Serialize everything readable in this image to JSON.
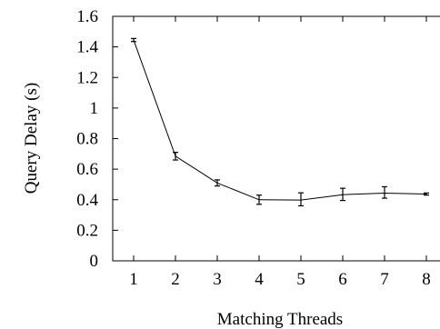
{
  "chart_data": {
    "type": "line",
    "title": "",
    "xlabel": "Matching Threads",
    "ylabel": "Query Delay (s)",
    "xlim": [
      0.5,
      8.5
    ],
    "ylim": [
      0,
      1.6
    ],
    "x_ticks": [
      {
        "value": 1,
        "label": "1"
      },
      {
        "value": 2,
        "label": "2"
      },
      {
        "value": 3,
        "label": "3"
      },
      {
        "value": 4,
        "label": "4"
      },
      {
        "value": 5,
        "label": "5"
      },
      {
        "value": 6,
        "label": "6"
      },
      {
        "value": 7,
        "label": "7"
      },
      {
        "value": 8,
        "label": "8"
      }
    ],
    "y_ticks": [
      {
        "value": 0,
        "label": "0"
      },
      {
        "value": 0.2,
        "label": "0.2"
      },
      {
        "value": 0.4,
        "label": "0.4"
      },
      {
        "value": 0.6,
        "label": "0.6"
      },
      {
        "value": 0.8,
        "label": "0.8"
      },
      {
        "value": 1,
        "label": "1"
      },
      {
        "value": 1.2,
        "label": "1.2"
      },
      {
        "value": 1.4,
        "label": "1.4"
      },
      {
        "value": 1.6,
        "label": "1.6"
      }
    ],
    "grid": false,
    "legend": "none",
    "series": [
      {
        "color": "#000000",
        "points": [
          {
            "x": 1,
            "y": 1.445,
            "err_low": 1.435,
            "err_high": 1.455
          },
          {
            "x": 2,
            "y": 0.685,
            "err_low": 0.66,
            "err_high": 0.71
          },
          {
            "x": 3,
            "y": 0.51,
            "err_low": 0.49,
            "err_high": 0.53
          },
          {
            "x": 4,
            "y": 0.4,
            "err_low": 0.37,
            "err_high": 0.43
          },
          {
            "x": 5,
            "y": 0.398,
            "err_low": 0.36,
            "err_high": 0.445
          },
          {
            "x": 6,
            "y": 0.433,
            "err_low": 0.395,
            "err_high": 0.475
          },
          {
            "x": 7,
            "y": 0.443,
            "err_low": 0.41,
            "err_high": 0.485
          },
          {
            "x": 8,
            "y": 0.437,
            "err_low": 0.43,
            "err_high": 0.444
          }
        ]
      }
    ]
  }
}
